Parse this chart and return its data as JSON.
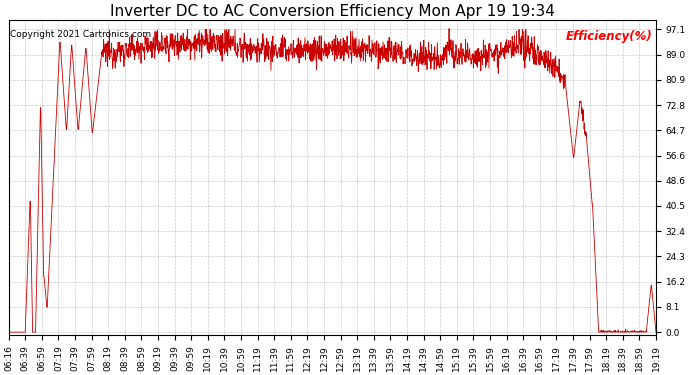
{
  "title": "Inverter DC to AC Conversion Efficiency Mon Apr 19 19:34",
  "copyright": "Copyright 2021 Cartronics.com",
  "ylabel": "Efficiency(%)",
  "ylabel_color": "#ff0000",
  "title_color": "#000000",
  "background_color": "#ffffff",
  "grid_color": "#bbbbbb",
  "line_color": "#cc0000",
  "yticks": [
    0.0,
    8.1,
    16.2,
    24.3,
    32.4,
    40.5,
    48.6,
    56.6,
    64.7,
    72.8,
    80.9,
    89.0,
    97.1
  ],
  "xtick_labels": [
    "06:16",
    "06:39",
    "06:59",
    "07:19",
    "07:39",
    "07:59",
    "08:19",
    "08:39",
    "08:59",
    "09:19",
    "09:39",
    "09:59",
    "10:19",
    "10:39",
    "10:59",
    "11:19",
    "11:39",
    "11:59",
    "12:19",
    "12:39",
    "12:59",
    "13:19",
    "13:39",
    "13:59",
    "14:19",
    "14:39",
    "14:59",
    "15:19",
    "15:39",
    "15:59",
    "16:19",
    "16:39",
    "16:59",
    "17:19",
    "17:39",
    "17:59",
    "18:19",
    "18:39",
    "18:59",
    "19:19"
  ],
  "title_fontsize": 11,
  "copyright_fontsize": 6.5,
  "ylabel_fontsize": 8.5,
  "tick_fontsize": 6.5
}
